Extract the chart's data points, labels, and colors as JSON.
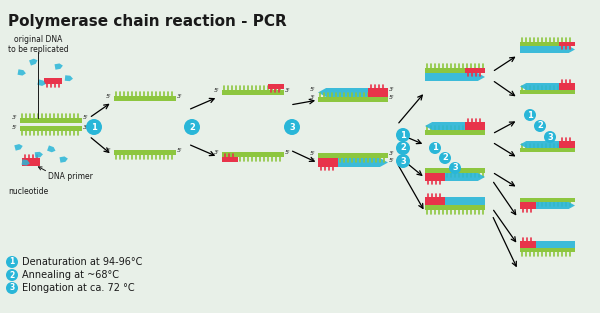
{
  "title": "Polymerase chain reaction - PCR",
  "bg_color": "#e8f0e8",
  "legend": [
    {
      "num": "1",
      "text": "Denaturation at 94-96°C"
    },
    {
      "num": "2",
      "text": "Annealing at ~68°C"
    },
    {
      "num": "3",
      "text": "Elongation at ca. 72 °C"
    }
  ],
  "label_color": "#29b6d8",
  "dna_green": "#8dc63f",
  "primer_red": "#e8334a",
  "arrow_blue": "#29b6d8",
  "text_dark": "#1a1a1a",
  "title_fontsize": 11,
  "legend_fontsize": 7
}
